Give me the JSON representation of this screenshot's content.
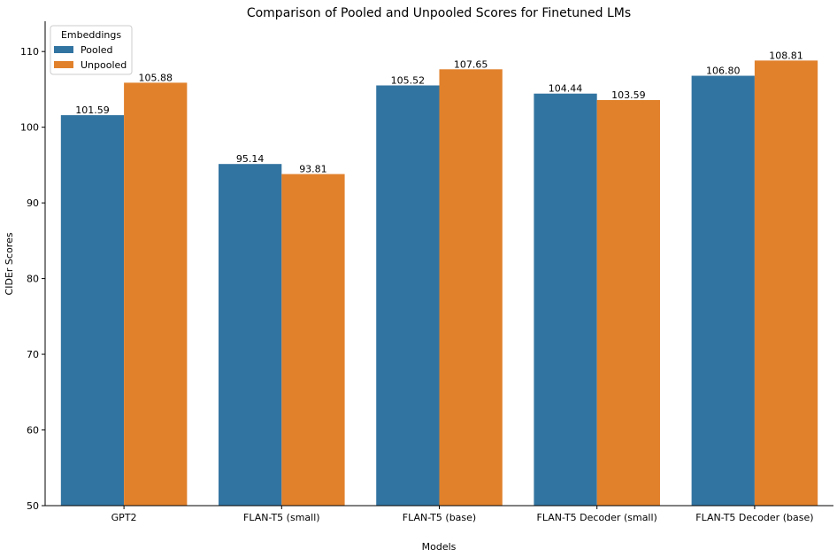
{
  "chart_data": {
    "type": "bar",
    "title": "Comparison of Pooled and Unpooled Scores for Finetuned LMs",
    "xlabel": "Models",
    "ylabel": "CIDEr Scores",
    "ylim": [
      50,
      114
    ],
    "yticks": [
      50,
      60,
      70,
      80,
      90,
      100,
      110
    ],
    "categories": [
      "GPT2",
      "FLAN-T5 (small)",
      "FLAN-T5 (base)",
      "FLAN-T5 Decoder (small)",
      "FLAN-T5 Decoder (base)"
    ],
    "series": [
      {
        "name": "Pooled",
        "color": "#3274a1",
        "values": [
          101.59,
          95.14,
          105.52,
          104.44,
          106.8
        ],
        "labels": [
          "101.59",
          "95.14",
          "105.52",
          "104.44",
          "106.80"
        ]
      },
      {
        "name": "Unpooled",
        "color": "#e1812c",
        "values": [
          105.88,
          93.81,
          107.65,
          103.59,
          108.81
        ],
        "labels": [
          "105.88",
          "93.81",
          "107.65",
          "103.59",
          "108.81"
        ]
      }
    ],
    "legend": {
      "title": "Embeddings",
      "placement": "top-left"
    },
    "grid": false
  }
}
